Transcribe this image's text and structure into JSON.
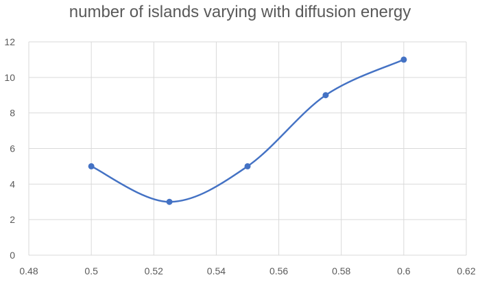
{
  "chart_data": {
    "type": "line",
    "title": "number of islands varying with diffusion energy",
    "xlabel": "",
    "ylabel": "",
    "smooth": true,
    "grid": true,
    "legend": "none",
    "xlim": [
      0.48,
      0.62
    ],
    "ylim": [
      0,
      12
    ],
    "x_ticks": [
      "0.48",
      "0.5",
      "0.52",
      "0.54",
      "0.56",
      "0.58",
      "0.6",
      "0.62"
    ],
    "y_ticks": [
      "0",
      "2",
      "4",
      "6",
      "8",
      "10",
      "12"
    ],
    "series": [
      {
        "x": [
          0.5,
          0.525,
          0.55,
          0.575,
          0.6
        ],
        "y": [
          5,
          3,
          5,
          9,
          11
        ],
        "color": "#4472c4"
      }
    ],
    "gridline_color": "#d9d9d9",
    "text_color": "#595959"
  }
}
